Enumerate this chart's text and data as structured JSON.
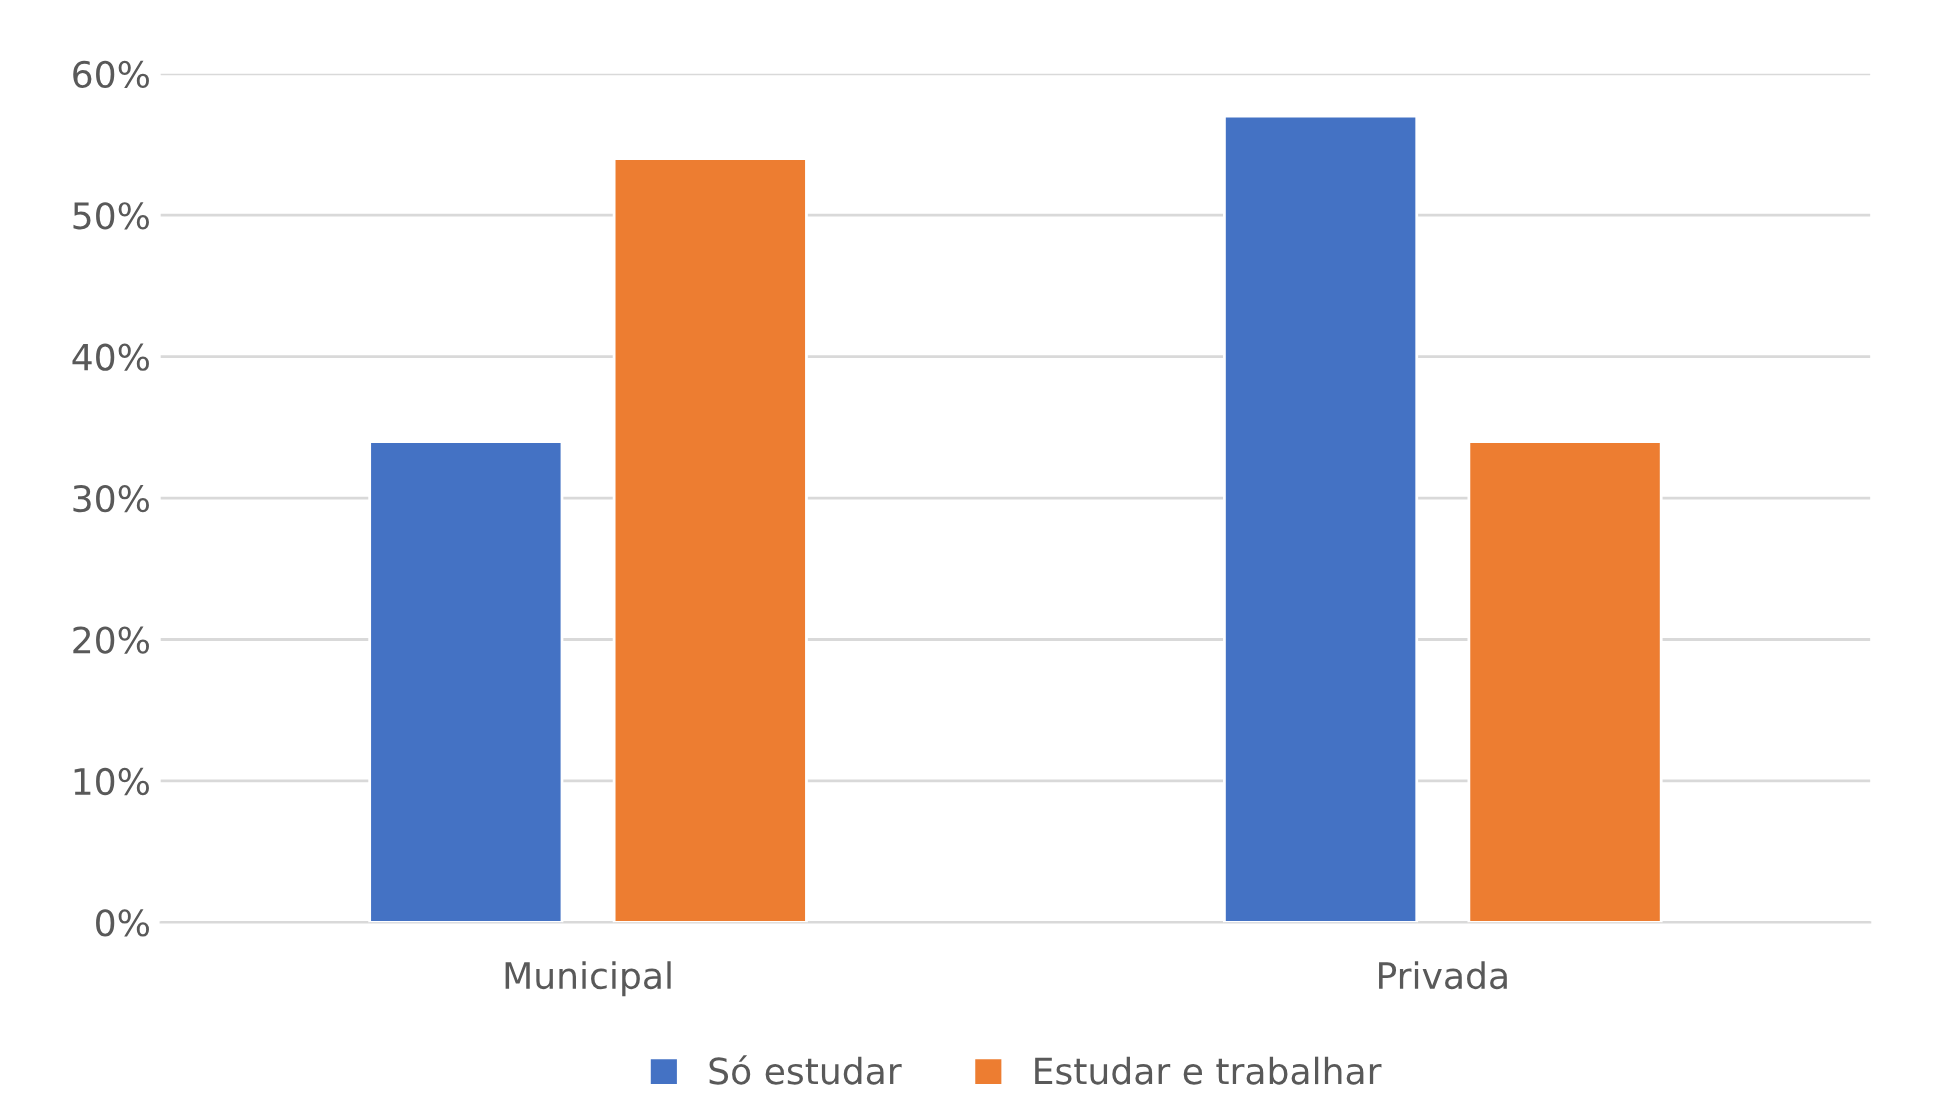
{
  "chart_data": {
    "type": "bar",
    "categories": [
      "Municipal",
      "Privada"
    ],
    "series": [
      {
        "name": "Só estudar",
        "color": "#4472c4",
        "values": [
          34,
          57
        ]
      },
      {
        "name": "Estudar e trabalhar",
        "color": "#ed7d31",
        "values": [
          54,
          34
        ]
      }
    ],
    "ylim": [
      0,
      60
    ],
    "yticks": [
      {
        "value": 0,
        "label": "0%"
      },
      {
        "value": 10,
        "label": "10%"
      },
      {
        "value": 20,
        "label": "20%"
      },
      {
        "value": 30,
        "label": "30%"
      },
      {
        "value": 40,
        "label": "40%"
      },
      {
        "value": 50,
        "label": "50%"
      },
      {
        "value": 60,
        "label": "60%"
      }
    ],
    "grid": "y",
    "legend": "bottom"
  }
}
